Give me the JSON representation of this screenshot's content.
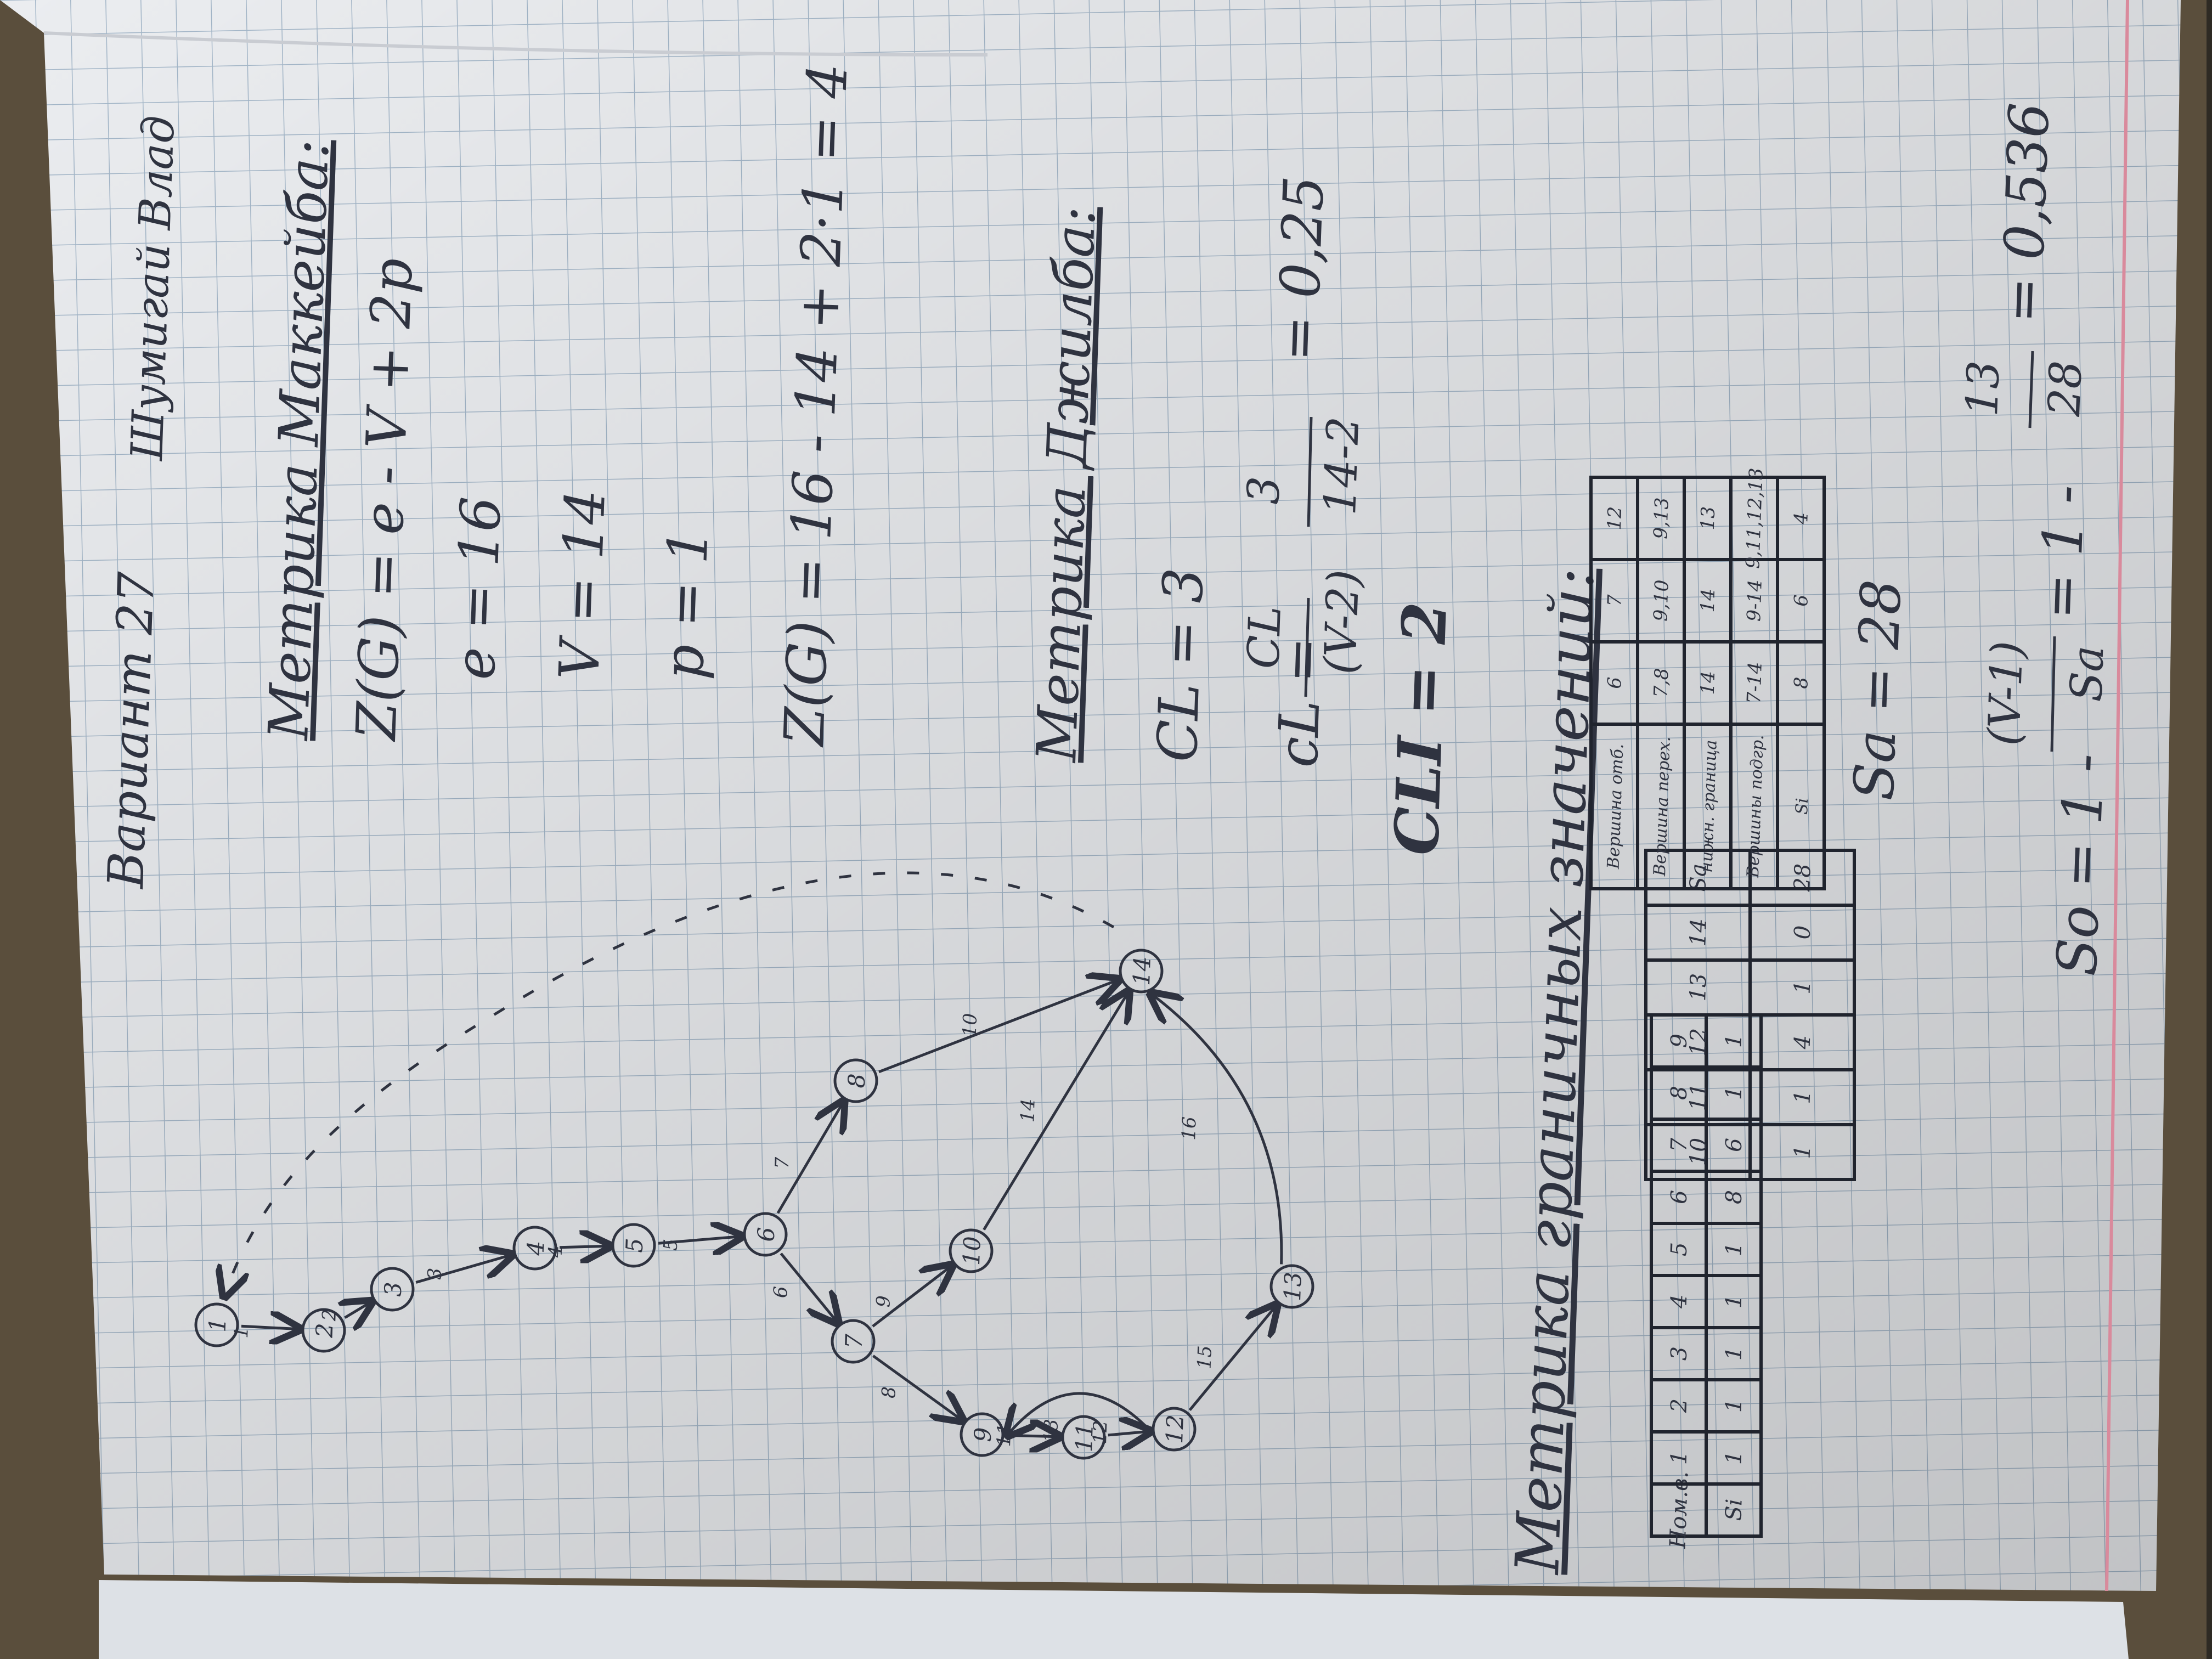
{
  "colors": {
    "paper": "#ebedf0",
    "grid": "#9fb3c6",
    "margin_line": "#d98a9c",
    "ink": "#2f3340",
    "table_ink": "#20242e",
    "background": "#5a4e3c"
  },
  "header": {
    "variant": "Вариант 27",
    "author": "Шумигай Влад"
  },
  "graph": {
    "nodes": [
      "1",
      "2",
      "3",
      "4",
      "5",
      "6",
      "7",
      "8",
      "9",
      "10",
      "11",
      "12",
      "13",
      "14"
    ],
    "edge_labels": [
      "1",
      "2",
      "3",
      "4",
      "5",
      "6",
      "7",
      "8",
      "9",
      "10",
      "11",
      "12",
      "13",
      "14",
      "15",
      "16"
    ]
  },
  "mccabe": {
    "title": "Метрика Маккейба:",
    "formula": "Z(G) = e - V + 2p",
    "e": "e = 16",
    "v": "V = 14",
    "p": "p = 1",
    "result": "Z(G) = 16 - 14 + 2·1 = 4"
  },
  "gilb": {
    "title": "Метрика Джилба:",
    "cl": "CL = 3",
    "cl_formula_left": "cL =",
    "cl_num": "CL",
    "cl_den": "(V-2)",
    "cl_num2": "3",
    "cl_den2": "14-2",
    "cl_value": "= 0,25",
    "cli": "CLI = 2"
  },
  "boundary": {
    "title": "Метрика граничных значений:",
    "table_left": {
      "headers": [
        "Ном.в.",
        "Si"
      ],
      "rows": [
        [
          "1",
          "1"
        ],
        [
          "2",
          "1"
        ],
        [
          "3",
          "1"
        ],
        [
          "4",
          "1"
        ],
        [
          "5",
          "1"
        ],
        [
          "6",
          "8"
        ],
        [
          "7",
          "6"
        ],
        [
          "8",
          "1"
        ],
        [
          "9",
          "1"
        ]
      ]
    },
    "table_mid": {
      "rows": [
        [
          "10",
          "1"
        ],
        [
          "11",
          "1"
        ],
        [
          "12",
          "4"
        ],
        [
          "13",
          "1"
        ],
        [
          "14",
          "0"
        ]
      ],
      "sum_label": "Sa",
      "sum_value": "28"
    },
    "table_right": {
      "row_labels": [
        "Вершина отб.",
        "Вершина перех.",
        "нижн. граница",
        "Вершины подгр.",
        "Si"
      ],
      "columns": [
        [
          "6",
          "7,8",
          "14",
          "7-14",
          "8"
        ],
        [
          "7",
          "9,10",
          "14",
          "9-14",
          "6"
        ],
        [
          "12",
          "9,13",
          "13",
          "9,11,12,13",
          "4"
        ]
      ]
    },
    "sa": "Sa = 28",
    "so_formula_a": "So = 1 -",
    "so_num": "(V-1)",
    "so_den": "Sa",
    "so_formula_b": "= 1 -",
    "so_num2": "13",
    "so_den2": "28",
    "so_value": "= 0,536"
  }
}
